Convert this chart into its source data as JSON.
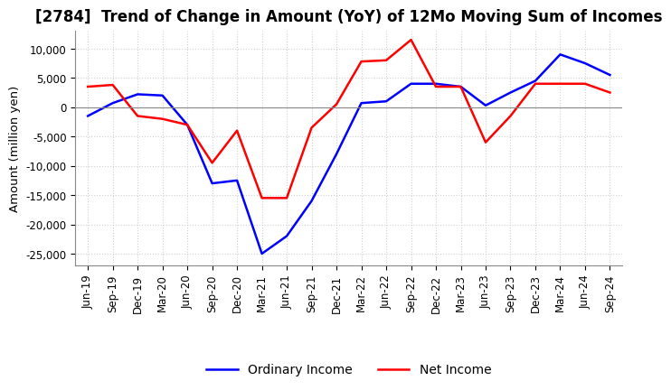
{
  "title": "[2784]  Trend of Change in Amount (YoY) of 12Mo Moving Sum of Incomes",
  "ylabel": "Amount (million yen)",
  "ylim": [
    -27000,
    13000
  ],
  "yticks": [
    10000,
    5000,
    0,
    -5000,
    -10000,
    -15000,
    -20000,
    -25000
  ],
  "x_labels": [
    "Jun-19",
    "Sep-19",
    "Dec-19",
    "Mar-20",
    "Jun-20",
    "Sep-20",
    "Dec-20",
    "Mar-21",
    "Jun-21",
    "Sep-21",
    "Dec-21",
    "Mar-22",
    "Jun-22",
    "Sep-22",
    "Dec-22",
    "Mar-23",
    "Jun-23",
    "Sep-23",
    "Dec-23",
    "Mar-24",
    "Jun-24",
    "Sep-24"
  ],
  "ordinary_income": [
    -1500,
    700,
    2200,
    2000,
    -3000,
    -13000,
    -12500,
    -25000,
    -22000,
    -16000,
    -8000,
    700,
    1000,
    4000,
    4000,
    3500,
    300,
    2500,
    4500,
    9000,
    7500,
    5500
  ],
  "net_income": [
    3500,
    3800,
    -1500,
    -2000,
    -3000,
    -9500,
    -4000,
    -15500,
    -15500,
    -3500,
    500,
    7800,
    8000,
    11500,
    3500,
    3500,
    -6000,
    -1500,
    4000,
    4000,
    4000,
    2500
  ],
  "ordinary_color": "#0000ff",
  "net_color": "#ff0000",
  "grid_color": "#d0d0d0",
  "background_color": "#ffffff",
  "title_fontsize": 12,
  "tick_fontsize": 8.5,
  "legend_fontsize": 10
}
